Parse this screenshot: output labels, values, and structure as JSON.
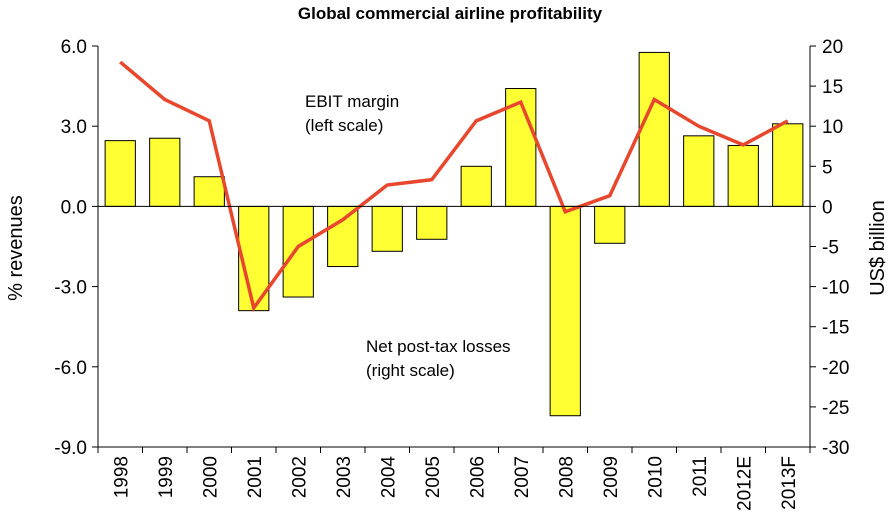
{
  "chart_data": {
    "type": "bar+line",
    "title": "Global commercial airline profitability",
    "categories": [
      "1998",
      "1999",
      "2000",
      "2001",
      "2002",
      "2003",
      "2004",
      "2005",
      "2006",
      "2007",
      "2008",
      "2009",
      "2010",
      "2011",
      "2012E",
      "2013F"
    ],
    "series": [
      {
        "name": "Net post-tax losses",
        "kind": "bar",
        "axis": "right",
        "color": "#ffff33",
        "values": [
          8.2,
          8.5,
          3.7,
          -13.0,
          -11.3,
          -7.5,
          -5.6,
          -4.1,
          5.0,
          14.7,
          -26.1,
          -4.6,
          19.2,
          8.8,
          7.6,
          10.3
        ]
      },
      {
        "name": "EBIT margin",
        "kind": "line",
        "axis": "left",
        "color": "#e8472e",
        "values": [
          5.4,
          4.0,
          3.2,
          -3.8,
          -1.5,
          -0.5,
          0.8,
          1.0,
          3.2,
          3.9,
          -0.2,
          0.4,
          4.0,
          3.0,
          2.3,
          3.2
        ]
      }
    ],
    "ylabel": "% revenues",
    "y2label": "US$ billion",
    "ylim": [
      -9.0,
      6.0
    ],
    "y2lim": [
      -30,
      20
    ],
    "yticks": [
      "6.0",
      "3.0",
      "0.0",
      "-3.0",
      "-6.0",
      "-9.0"
    ],
    "y2ticks": [
      "20",
      "15",
      "10",
      "5",
      "0",
      "-5",
      "-10",
      "-15",
      "-20",
      "-25",
      "-30"
    ],
    "annotations": {
      "ebit_line1": "EBIT margin",
      "ebit_line2": "(left scale)",
      "losses_line1": "Net post-tax losses",
      "losses_line2": "(right scale)"
    },
    "grid": false,
    "legend": "none"
  }
}
